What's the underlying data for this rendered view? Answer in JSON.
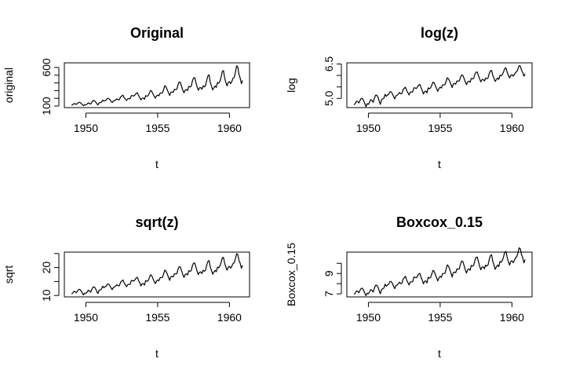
{
  "chart_data": [
    {
      "type": "line",
      "title": "Original",
      "xlabel": "t",
      "ylabel": "original",
      "xlim": [
        1948.5,
        1961.4
      ],
      "ylim": [
        80,
        660
      ],
      "xticks": [
        1950,
        1955,
        1960
      ],
      "xtick_labels": [
        "1950",
        "1955",
        "1960"
      ],
      "yticks": [
        100,
        200,
        300,
        400,
        500,
        600
      ],
      "ytick_labels": [
        "100",
        "",
        "",
        "",
        "",
        "600"
      ],
      "x_start": 1949,
      "x_step": 0.083333,
      "values": [
        112,
        118,
        132,
        129,
        121,
        135,
        148,
        148,
        136,
        119,
        104,
        118,
        115,
        126,
        141,
        135,
        125,
        149,
        170,
        170,
        158,
        133,
        114,
        140,
        145,
        150,
        178,
        163,
        172,
        178,
        199,
        199,
        184,
        162,
        146,
        166,
        171,
        180,
        193,
        181,
        183,
        218,
        230,
        242,
        209,
        191,
        172,
        194,
        196,
        196,
        236,
        235,
        229,
        243,
        264,
        272,
        237,
        211,
        180,
        201,
        204,
        188,
        235,
        227,
        234,
        264,
        302,
        293,
        259,
        229,
        203,
        229,
        242,
        233,
        267,
        269,
        270,
        315,
        364,
        347,
        312,
        274,
        237,
        278,
        284,
        277,
        317,
        313,
        318,
        374,
        413,
        405,
        355,
        306,
        271,
        306,
        315,
        301,
        356,
        348,
        355,
        422,
        465,
        467,
        404,
        347,
        305,
        336,
        340,
        318,
        362,
        348,
        363,
        435,
        491,
        505,
        404,
        359,
        310,
        337,
        360,
        342,
        406,
        396,
        420,
        472,
        548,
        559,
        463,
        407,
        362,
        405,
        417,
        391,
        419,
        461,
        472,
        535,
        622,
        606,
        508,
        461,
        390,
        432
      ]
    },
    {
      "type": "line",
      "title": "log(z)",
      "xlabel": "t",
      "ylabel": "log",
      "xlim": [
        1948.5,
        1961.4
      ],
      "ylim": [
        4.6,
        6.55
      ],
      "xticks": [
        1950,
        1955,
        1960
      ],
      "xtick_labels": [
        "1950",
        "1955",
        "1960"
      ],
      "yticks": [
        5.0,
        5.5,
        6.0,
        6.5
      ],
      "ytick_labels": [
        "5.0",
        "",
        "",
        "6.5"
      ],
      "x_start": 1949,
      "x_step": 0.083333,
      "values": [
        4.72,
        4.77,
        4.88,
        4.86,
        4.8,
        4.91,
        5.0,
        5.0,
        4.91,
        4.78,
        4.64,
        4.77,
        4.74,
        4.84,
        4.95,
        4.91,
        4.83,
        5.0,
        5.14,
        5.14,
        5.06,
        4.89,
        4.74,
        4.94,
        4.98,
        5.01,
        5.18,
        5.09,
        5.15,
        5.18,
        5.29,
        5.29,
        5.21,
        5.09,
        4.98,
        5.11,
        5.14,
        5.19,
        5.26,
        5.2,
        5.21,
        5.38,
        5.44,
        5.49,
        5.34,
        5.25,
        5.15,
        5.27,
        5.28,
        5.28,
        5.46,
        5.46,
        5.43,
        5.49,
        5.58,
        5.61,
        5.47,
        5.35,
        5.19,
        5.3,
        5.32,
        5.24,
        5.46,
        5.42,
        5.46,
        5.58,
        5.71,
        5.68,
        5.56,
        5.43,
        5.31,
        5.43,
        5.49,
        5.45,
        5.59,
        5.59,
        5.6,
        5.75,
        5.9,
        5.85,
        5.74,
        5.61,
        5.47,
        5.63,
        5.65,
        5.62,
        5.76,
        5.75,
        5.76,
        5.92,
        6.02,
        6.0,
        5.87,
        5.72,
        5.6,
        5.72,
        5.75,
        5.71,
        5.87,
        5.85,
        5.87,
        6.05,
        6.14,
        6.15,
        6.0,
        5.85,
        5.72,
        5.82,
        5.83,
        5.76,
        5.89,
        5.85,
        5.89,
        6.08,
        6.2,
        6.22,
        6.0,
        5.88,
        5.74,
        5.82,
        5.89,
        5.83,
        6.01,
        5.98,
        6.04,
        6.16,
        6.31,
        6.33,
        6.14,
        6.01,
        5.89,
        6.0,
        6.03,
        5.97,
        6.04,
        6.13,
        6.16,
        6.28,
        6.43,
        6.41,
        6.23,
        6.13,
        5.97,
        6.07
      ]
    },
    {
      "type": "line",
      "title": "sqrt(z)",
      "xlabel": "t",
      "ylabel": "sqrt",
      "xlim": [
        1948.5,
        1961.4
      ],
      "ylim": [
        9.5,
        25.5
      ],
      "xticks": [
        1950,
        1955,
        1960
      ],
      "xtick_labels": [
        "1950",
        "1955",
        "1960"
      ],
      "yticks": [
        10,
        15,
        20,
        25
      ],
      "ytick_labels": [
        "10",
        "",
        "20",
        ""
      ],
      "x_start": 1949,
      "x_step": 0.083333,
      "values": [
        10.58,
        10.86,
        11.49,
        11.36,
        11.0,
        11.62,
        12.17,
        12.17,
        11.66,
        10.91,
        10.2,
        10.86,
        10.72,
        11.22,
        11.87,
        11.62,
        11.18,
        12.21,
        13.04,
        13.04,
        12.57,
        11.53,
        10.68,
        11.83,
        12.04,
        12.25,
        13.34,
        12.77,
        13.11,
        13.34,
        14.11,
        14.11,
        13.56,
        12.73,
        12.08,
        12.88,
        13.08,
        13.42,
        13.89,
        13.45,
        13.53,
        14.76,
        15.17,
        15.56,
        14.46,
        13.82,
        13.11,
        13.93,
        14.0,
        14.0,
        15.36,
        15.33,
        15.13,
        15.59,
        16.25,
        16.49,
        15.39,
        14.53,
        13.42,
        14.18,
        14.28,
        13.71,
        15.33,
        15.07,
        15.3,
        16.25,
        17.38,
        17.12,
        16.09,
        15.13,
        14.25,
        15.13,
        15.56,
        15.26,
        16.34,
        16.4,
        16.43,
        17.75,
        19.08,
        18.63,
        17.66,
        16.55,
        15.39,
        16.67,
        16.85,
        16.64,
        17.8,
        17.69,
        17.83,
        19.34,
        20.32,
        20.12,
        18.84,
        17.49,
        16.46,
        17.49,
        17.75,
        17.35,
        18.87,
        18.65,
        18.84,
        20.54,
        21.56,
        21.61,
        20.1,
        18.63,
        17.46,
        18.33,
        18.44,
        17.83,
        19.03,
        18.65,
        19.05,
        20.86,
        22.16,
        22.47,
        20.1,
        18.95,
        17.61,
        18.36,
        18.97,
        18.49,
        20.15,
        19.9,
        20.49,
        21.73,
        23.41,
        23.64,
        21.52,
        20.17,
        19.03,
        20.12,
        20.42,
        19.77,
        20.47,
        21.47,
        21.73,
        23.13,
        24.94,
        24.62,
        22.54,
        21.47,
        19.75,
        20.78
      ]
    },
    {
      "type": "line",
      "title": "Boxcox_0.15",
      "xlabel": "t",
      "ylabel": "Boxcox_0.15",
      "xlim": [
        1948.5,
        1961.4
      ],
      "ylim": [
        6.7,
        11.1
      ],
      "xticks": [
        1950,
        1955,
        1960
      ],
      "xtick_labels": [
        "1950",
        "1955",
        "1960"
      ],
      "yticks": [
        7,
        8,
        9,
        10
      ],
      "ytick_labels": [
        "7",
        "",
        "9",
        ""
      ],
      "x_start": 1949,
      "x_step": 0.083333,
      "values": [
        6.95,
        7.06,
        7.29,
        7.24,
        7.11,
        7.34,
        7.54,
        7.54,
        7.35,
        7.08,
        6.83,
        7.06,
        7.01,
        7.19,
        7.42,
        7.34,
        7.17,
        7.55,
        7.84,
        7.84,
        7.67,
        7.31,
        7.01,
        7.42,
        7.49,
        7.57,
        7.95,
        7.75,
        7.87,
        7.95,
        8.22,
        8.22,
        8.03,
        7.74,
        7.51,
        7.8,
        7.87,
        7.98,
        8.15,
        8.0,
        8.03,
        8.45,
        8.59,
        8.72,
        8.34,
        8.12,
        7.87,
        8.16,
        8.18,
        8.18,
        8.64,
        8.63,
        8.57,
        8.72,
        8.94,
        9.02,
        8.65,
        8.35,
        7.98,
        8.24,
        8.27,
        8.07,
        8.63,
        8.54,
        8.62,
        8.94,
        9.31,
        9.22,
        8.89,
        8.57,
        8.27,
        8.57,
        8.72,
        8.62,
        8.98,
        9.0,
        9.01,
        9.44,
        9.85,
        9.71,
        9.41,
        9.05,
        8.65,
        9.09,
        9.14,
        9.08,
        9.45,
        9.42,
        9.46,
        9.93,
        10.23,
        10.17,
        9.78,
        9.37,
        9.04,
        9.37,
        9.45,
        9.32,
        9.79,
        9.72,
        9.78,
        10.29,
        10.59,
        10.61,
        10.17,
        9.72,
        9.36,
        9.63,
        9.66,
        9.46,
        9.83,
        9.72,
        9.84,
        10.38,
        10.75,
        10.84,
        10.17,
        9.83,
        9.41,
        9.64,
        9.83,
        9.68,
        10.18,
        10.11,
        10.28,
        10.64,
        11.1,
        11.17,
        10.59,
        10.19,
        9.83,
        10.17,
        10.26,
        10.06,
        10.27,
        10.56,
        10.64,
        11.03,
        11.52,
        11.43,
        10.86,
        10.56,
        10.05,
        10.37
      ]
    }
  ]
}
